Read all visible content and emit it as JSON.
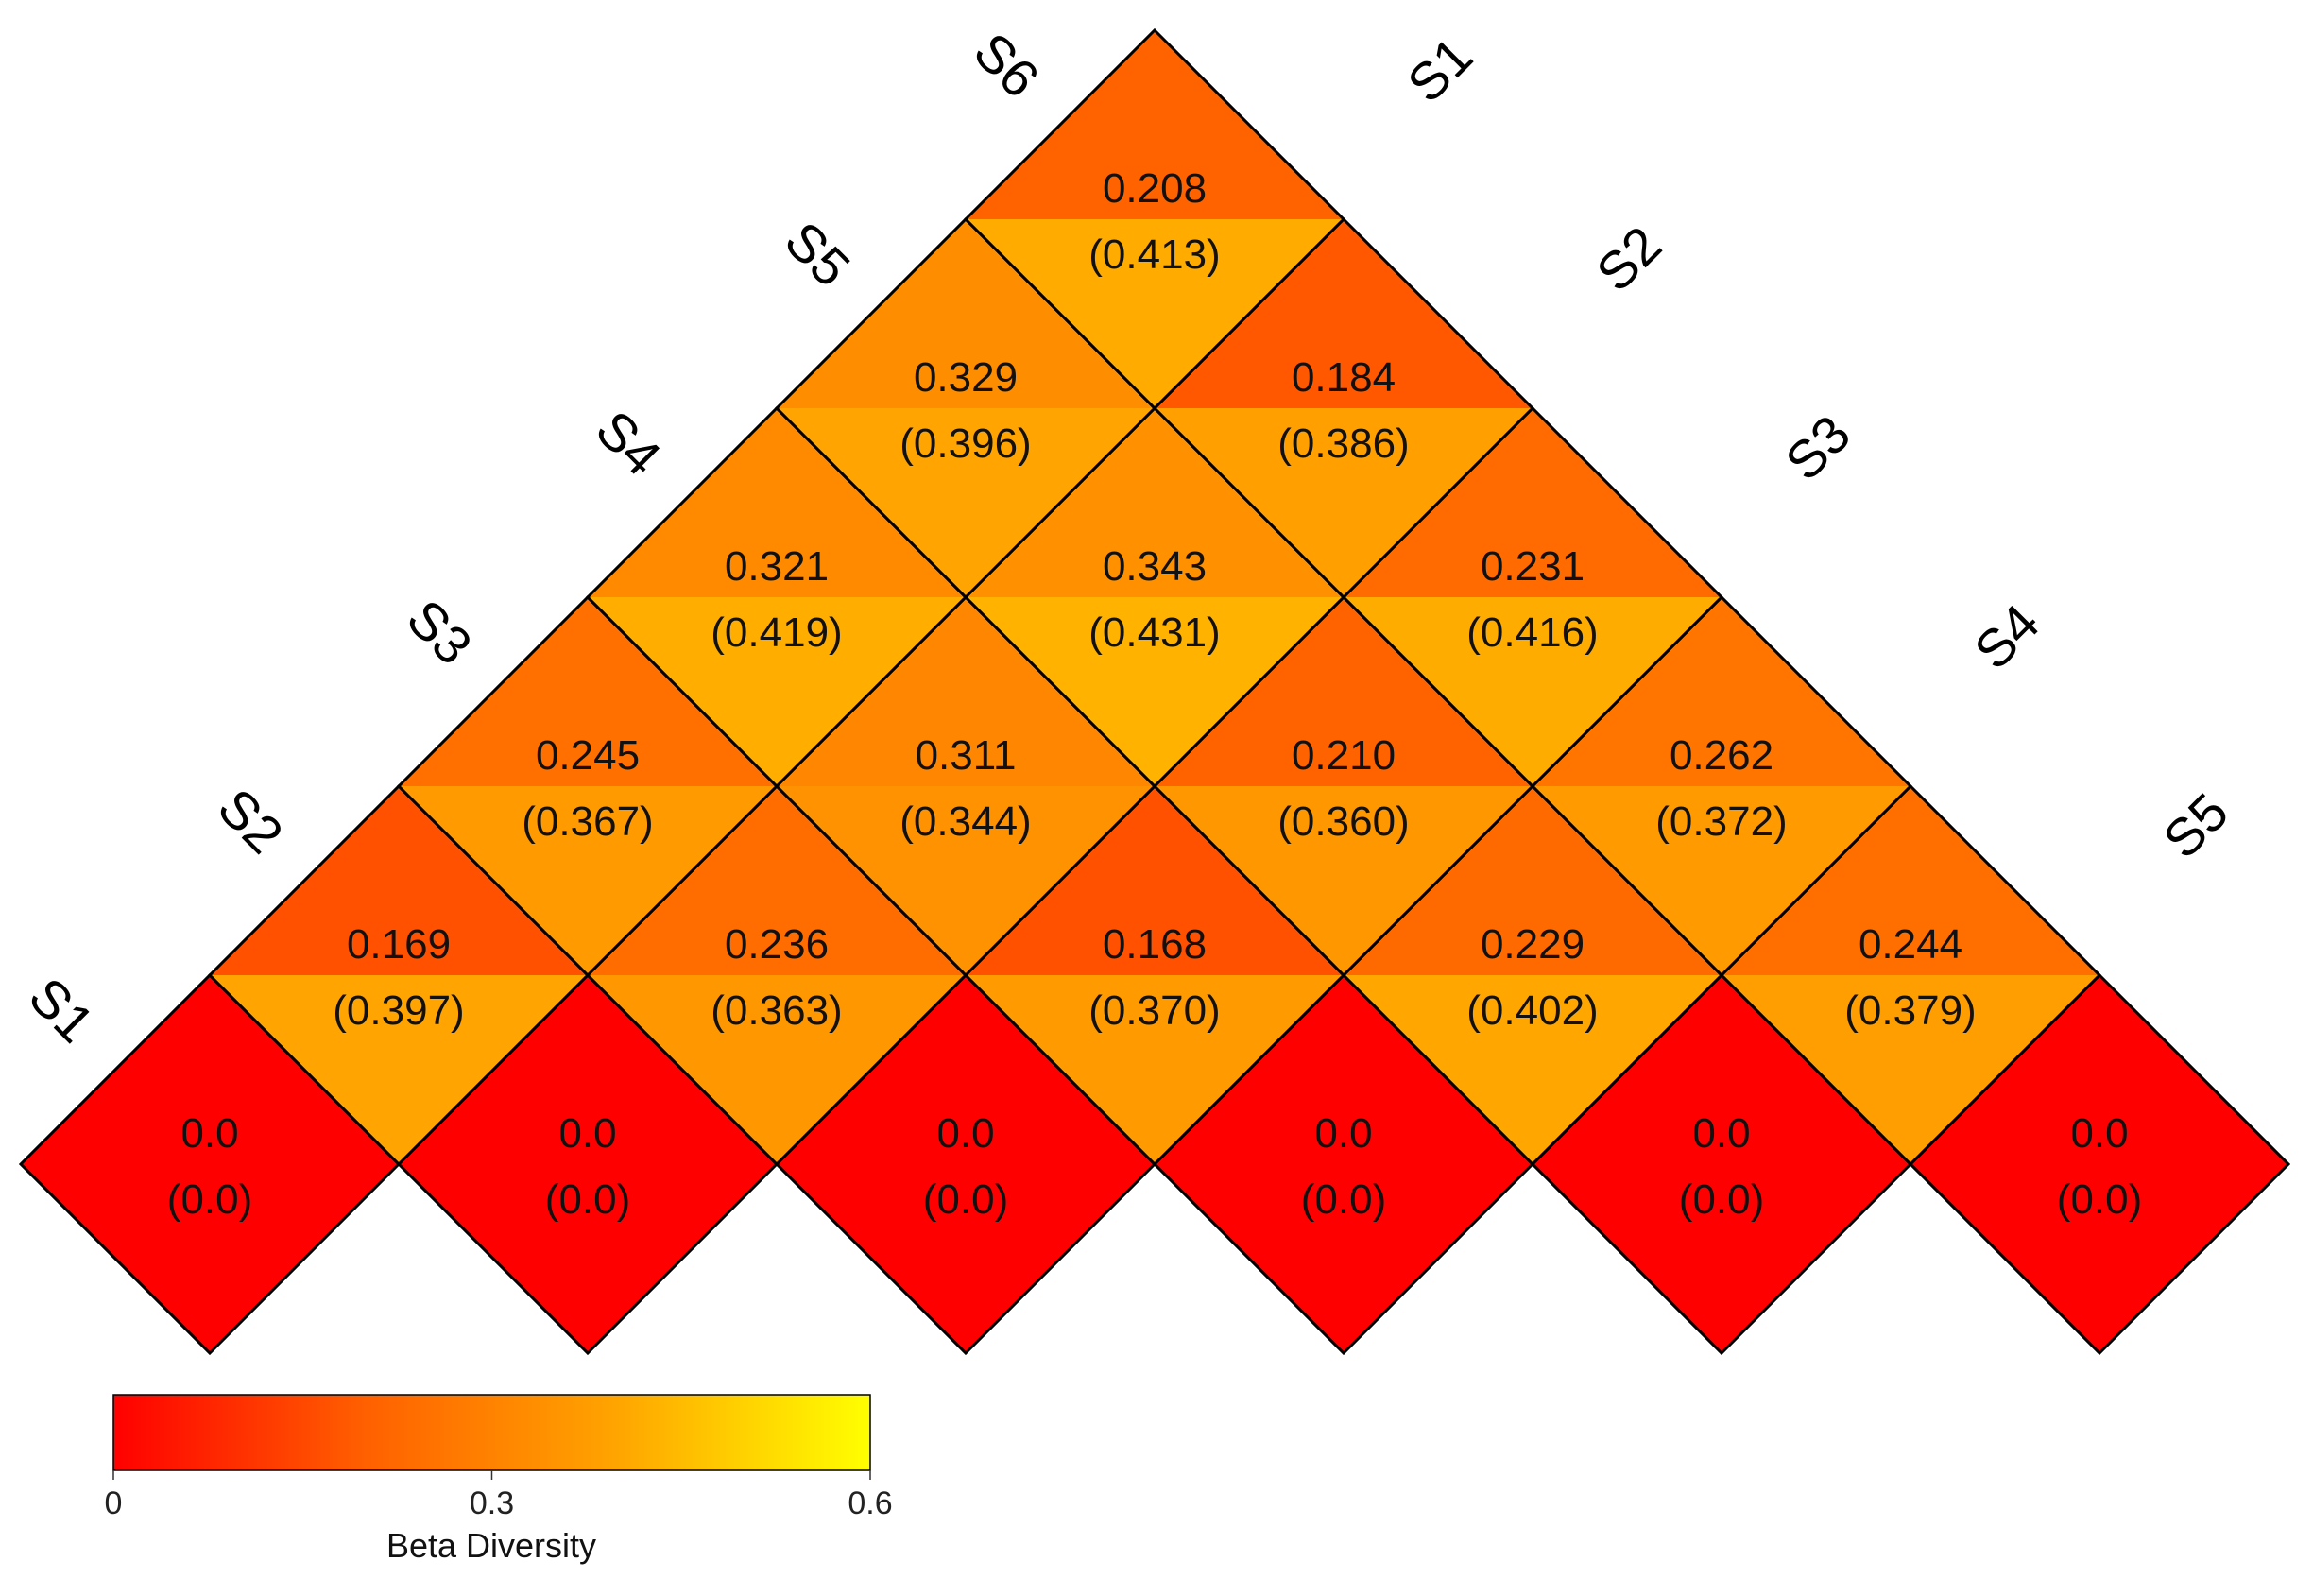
{
  "chart_data": {
    "type": "heatmap",
    "layout": "triangular-pairwise",
    "sites": [
      "S1",
      "S2",
      "S3",
      "S4",
      "S5",
      "S6"
    ],
    "upper_values": [
      [
        0.0,
        0.169,
        0.245,
        0.321,
        0.329,
        0.208
      ],
      [
        0.169,
        0.0,
        0.236,
        0.311,
        0.343,
        0.184
      ],
      [
        0.245,
        0.236,
        0.0,
        0.168,
        0.21,
        0.231
      ],
      [
        0.321,
        0.311,
        0.168,
        0.0,
        0.229,
        0.262
      ],
      [
        0.329,
        0.343,
        0.21,
        0.229,
        0.0,
        0.244
      ],
      [
        0.208,
        0.184,
        0.231,
        0.262,
        0.244,
        0.0
      ]
    ],
    "lower_values": [
      [
        0.0,
        0.397,
        0.367,
        0.419,
        0.396,
        0.413
      ],
      [
        0.397,
        0.0,
        0.363,
        0.344,
        0.431,
        0.386
      ],
      [
        0.367,
        0.363,
        0.0,
        0.37,
        0.36,
        0.416
      ],
      [
        0.419,
        0.344,
        0.37,
        0.0,
        0.402,
        0.372
      ],
      [
        0.396,
        0.431,
        0.36,
        0.402,
        0.0,
        0.379
      ],
      [
        0.413,
        0.386,
        0.416,
        0.372,
        0.379,
        0.0
      ]
    ],
    "cells": [
      {
        "row": "S1",
        "col": "S1",
        "top": "0.0",
        "bottom": "(0.0)"
      },
      {
        "row": "S2",
        "col": "S2",
        "top": "0.0",
        "bottom": "(0.0)"
      },
      {
        "row": "S3",
        "col": "S3",
        "top": "0.0",
        "bottom": "(0.0)"
      },
      {
        "row": "S4",
        "col": "S4",
        "top": "0.0",
        "bottom": "(0.0)"
      },
      {
        "row": "S5",
        "col": "S5",
        "top": "0.0",
        "bottom": "(0.0)"
      },
      {
        "row": "S6",
        "col": "S6",
        "top": "0.0",
        "bottom": "(0.0)"
      },
      {
        "row": "S1",
        "col": "S2",
        "top": "0.169",
        "bottom": "(0.397)"
      },
      {
        "row": "S2",
        "col": "S3",
        "top": "0.236",
        "bottom": "(0.363)"
      },
      {
        "row": "S3",
        "col": "S4",
        "top": "0.168",
        "bottom": "(0.370)"
      },
      {
        "row": "S4",
        "col": "S5",
        "top": "0.229",
        "bottom": "(0.402)"
      },
      {
        "row": "S5",
        "col": "S6",
        "top": "0.244",
        "bottom": "(0.379)"
      },
      {
        "row": "S1",
        "col": "S3",
        "top": "0.245",
        "bottom": "(0.367)"
      },
      {
        "row": "S2",
        "col": "S4",
        "top": "0.311",
        "bottom": "(0.344)"
      },
      {
        "row": "S3",
        "col": "S5",
        "top": "0.210",
        "bottom": "(0.360)"
      },
      {
        "row": "S4",
        "col": "S6",
        "top": "0.262",
        "bottom": "(0.372)"
      },
      {
        "row": "S1",
        "col": "S4",
        "top": "0.321",
        "bottom": "(0.419)"
      },
      {
        "row": "S2",
        "col": "S5",
        "top": "0.343",
        "bottom": "(0.431)"
      },
      {
        "row": "S3",
        "col": "S6",
        "top": "0.231",
        "bottom": "(0.416)"
      },
      {
        "row": "S1",
        "col": "S5",
        "top": "0.329",
        "bottom": "(0.396)"
      },
      {
        "row": "S2",
        "col": "S6",
        "top": "0.184",
        "bottom": "(0.386)"
      },
      {
        "row": "S1",
        "col": "S6",
        "top": "0.208",
        "bottom": "(0.413)"
      }
    ],
    "colorbar": {
      "title": "Beta Diversity",
      "range": [
        0,
        0.6
      ],
      "ticks": [
        {
          "value": 0,
          "label": "0"
        },
        {
          "value": 0.3,
          "label": "0.3"
        },
        {
          "value": 0.6,
          "label": "0.6"
        }
      ],
      "colors": [
        "#ff0000",
        "#ff6000",
        "#ffa500",
        "#ffff00"
      ],
      "placement": "bottom-left"
    },
    "grid": false,
    "title": "",
    "xlabel": "",
    "ylabel": ""
  }
}
